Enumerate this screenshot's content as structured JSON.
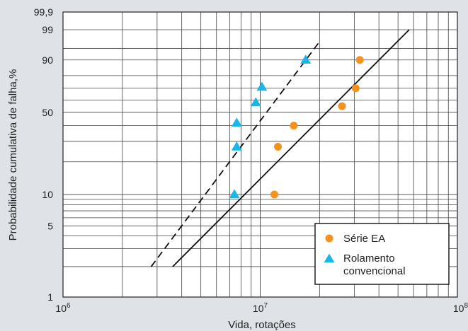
{
  "chart_data": {
    "type": "scatter",
    "title": "",
    "xlabel": "Vida, rotações",
    "ylabel": "Probabilidade cumulativa de falha,%",
    "x_scale": "log",
    "y_scale": "weibull",
    "xlim": [
      1000000,
      100000000
    ],
    "ylim": [
      1,
      99.9
    ],
    "grid": true,
    "legend_position": "bottom-right",
    "x_tick_labels": [
      {
        "value": 1000000,
        "base": "10",
        "exp": "6"
      },
      {
        "value": 10000000,
        "base": "10",
        "exp": "7"
      },
      {
        "value": 100000000,
        "base": "10",
        "exp": "8"
      }
    ],
    "y_tick_labels": [
      {
        "value": 1,
        "label": "1"
      },
      {
        "value": 5,
        "label": "5"
      },
      {
        "value": 10,
        "label": "10"
      },
      {
        "value": 50,
        "label": "50"
      },
      {
        "value": 90,
        "label": "90"
      },
      {
        "value": 99,
        "label": "99"
      },
      {
        "value": 99.9,
        "label": "99,9"
      }
    ],
    "y_gridlines": [
      1,
      2,
      3,
      4,
      5,
      6,
      7,
      8,
      9,
      10,
      20,
      30,
      40,
      50,
      60,
      70,
      80,
      90,
      95,
      99,
      99.9
    ],
    "series": [
      {
        "name": "Série EA",
        "marker": "circle",
        "color": "#f5921e",
        "points": [
          {
            "x": 11800000,
            "y": 10
          },
          {
            "x": 12300000,
            "y": 27
          },
          {
            "x": 14800000,
            "y": 40
          },
          {
            "x": 26000000,
            "y": 55
          },
          {
            "x": 30500000,
            "y": 70
          },
          {
            "x": 32000000,
            "y": 90
          }
        ],
        "fit_line": {
          "style": "solid",
          "from": {
            "x": 3600000,
            "y": 2
          },
          "to": {
            "x": 57000000,
            "y": 99
          }
        }
      },
      {
        "name": "Rolamento convencional",
        "marker": "triangle",
        "color": "#19b6e9",
        "points": [
          {
            "x": 7400000,
            "y": 10
          },
          {
            "x": 7600000,
            "y": 27
          },
          {
            "x": 7600000,
            "y": 42
          },
          {
            "x": 9500000,
            "y": 58
          },
          {
            "x": 10200000,
            "y": 71
          },
          {
            "x": 17000000,
            "y": 90
          }
        ],
        "fit_line": {
          "style": "dashed",
          "from": {
            "x": 2800000,
            "y": 2
          },
          "to": {
            "x": 20000000,
            "y": 97
          }
        }
      }
    ],
    "legend": {
      "entries": [
        {
          "series": 0,
          "lines": [
            "Série EA"
          ]
        },
        {
          "series": 1,
          "lines": [
            "Rolamento",
            "convencional"
          ]
        }
      ]
    }
  }
}
